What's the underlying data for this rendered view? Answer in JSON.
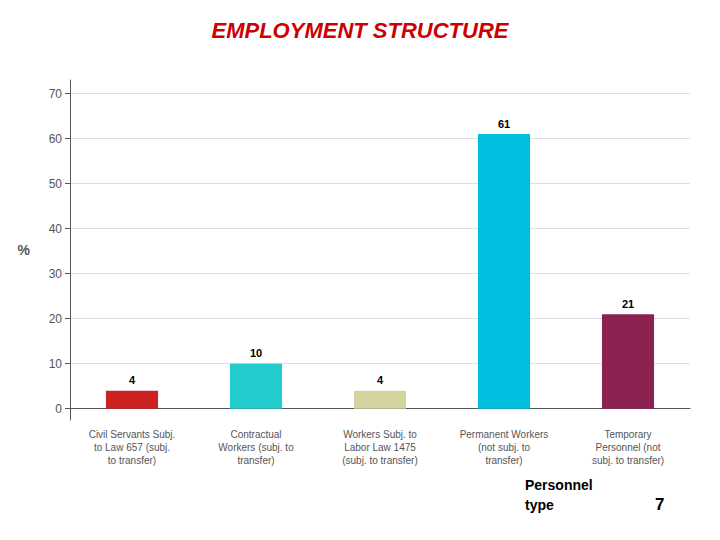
{
  "chart_data": {
    "type": "bar",
    "title": "EMPLOYMENT STRUCTURE",
    "ylabel": "%",
    "categories": [
      "Civil Servants Subj.\nto Law 657 (subj.\nto transfer)",
      "Contractual\nWorkers (subj. to\ntransfer)",
      "Workers Subj. to\nLabor Law 1475\n(subj. to transfer)",
      "Permanent Workers\n(not subj. to\ntransfer)",
      "Temporary\nPersonnel (not\nsubj. to transfer)"
    ],
    "values": [
      4,
      10,
      4,
      61,
      21
    ],
    "colors": [
      "#CC2222",
      "#22CCCC",
      "#D4D4A0",
      "#00BFDF",
      "#8B2252"
    ],
    "ylim": [
      -2.5,
      73
    ],
    "yticks": [
      0,
      10,
      20,
      30,
      40,
      50,
      60,
      70
    ],
    "grid": true,
    "data_labels": true,
    "annotations": [
      "Personnel",
      "type",
      "7"
    ]
  }
}
